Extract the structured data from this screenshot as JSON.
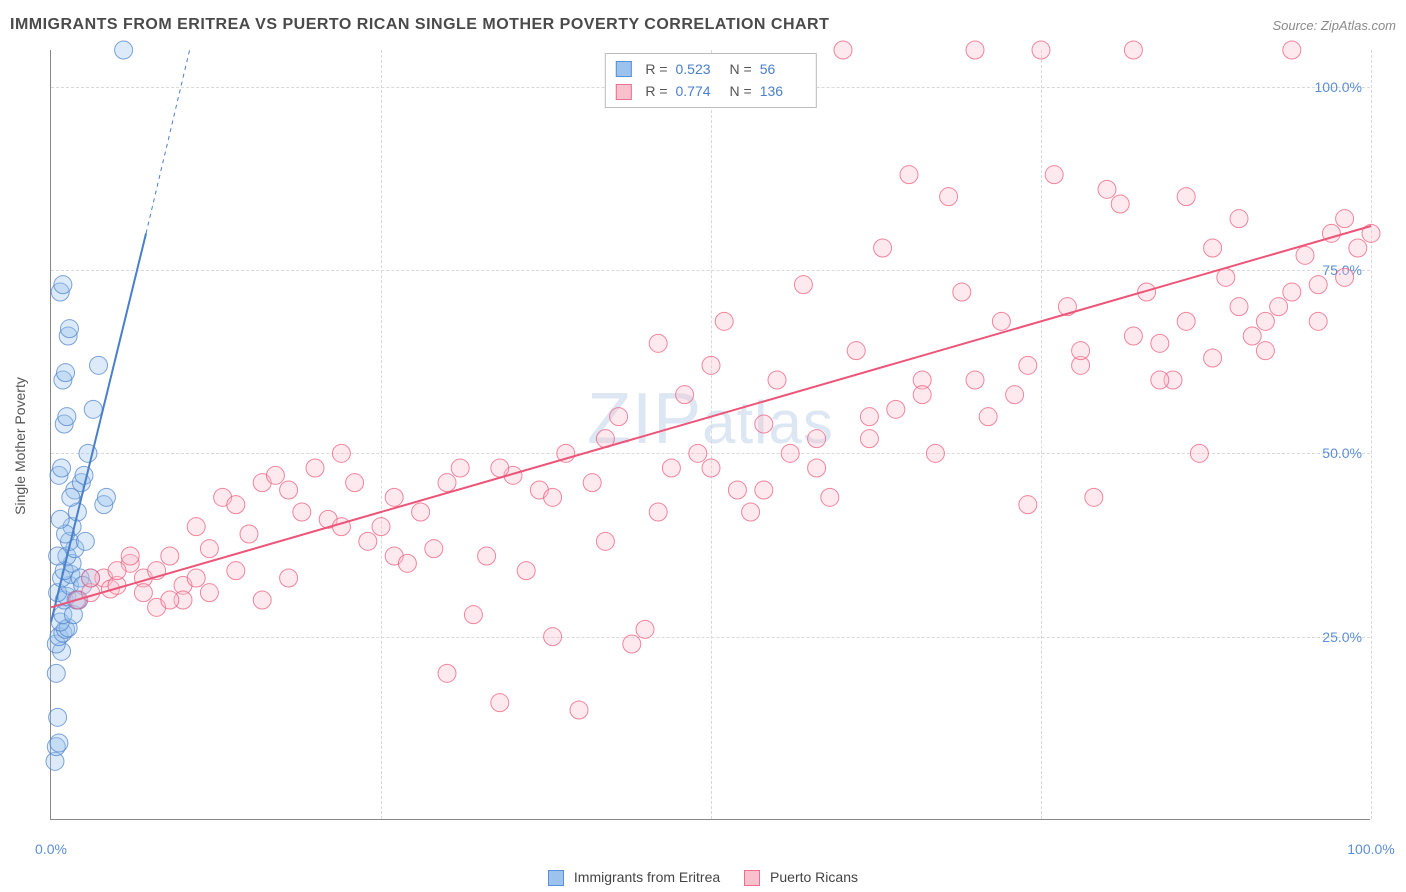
{
  "title": "IMMIGRANTS FROM ERITREA VS PUERTO RICAN SINGLE MOTHER POVERTY CORRELATION CHART",
  "source_label": "Source: ZipAtlas.com",
  "ylabel": "Single Mother Poverty",
  "watermark": "ZIPatlas",
  "legend": {
    "series1": {
      "label": "Immigrants from Eritrea",
      "fill": "#9cc3ee",
      "stroke": "#5b8fd6"
    },
    "series2": {
      "label": "Puerto Ricans",
      "fill": "#f9c0ce",
      "stroke": "#ec6f91"
    }
  },
  "inset": {
    "rows": [
      {
        "swatch_fill": "#9cc3ee",
        "swatch_stroke": "#5b8fd6",
        "r": "0.523",
        "n": "56"
      },
      {
        "swatch_fill": "#f9c0ce",
        "swatch_stroke": "#ec6f91",
        "r": "0.774",
        "n": "136"
      }
    ],
    "r_prefix": "R =",
    "n_prefix": "N ="
  },
  "chart": {
    "type": "scatter",
    "xlim": [
      0,
      100
    ],
    "ylim": [
      0,
      105
    ],
    "xtick_positions": [
      0,
      25,
      50,
      75,
      100
    ],
    "xtick_labels_shown": {
      "0": "0.0%",
      "100": "100.0%"
    },
    "ytick_positions": [
      25,
      50,
      75,
      100
    ],
    "ytick_labels": {
      "25": "25.0%",
      "50": "50.0%",
      "75": "75.0%",
      "100": "100.0%"
    },
    "background_color": "#ffffff",
    "grid_color": "#d8d8d8",
    "marker_radius": 9,
    "marker_fill_opacity": 0.35,
    "line_width": 2,
    "series": [
      {
        "name": "eritrea",
        "color": "#4a7fc9",
        "fill": "#9cc3ee",
        "trend": {
          "x1": 0,
          "y1": 27,
          "x2": 7.2,
          "y2": 80,
          "dashed_ext": {
            "x2": 10.5,
            "y2": 105
          }
        },
        "points": [
          [
            0.3,
            8
          ],
          [
            0.4,
            10
          ],
          [
            0.6,
            10.5
          ],
          [
            0.5,
            14
          ],
          [
            0.8,
            23
          ],
          [
            0.4,
            24
          ],
          [
            0.6,
            25
          ],
          [
            0.9,
            25.5
          ],
          [
            1.1,
            26
          ],
          [
            1.3,
            26.2
          ],
          [
            0.7,
            27
          ],
          [
            0.9,
            28
          ],
          [
            1.0,
            30
          ],
          [
            1.2,
            30.5
          ],
          [
            0.5,
            31
          ],
          [
            1.4,
            32
          ],
          [
            0.8,
            33
          ],
          [
            1.5,
            33.5
          ],
          [
            1.0,
            34
          ],
          [
            1.6,
            35
          ],
          [
            1.2,
            36
          ],
          [
            1.8,
            37
          ],
          [
            1.4,
            38
          ],
          [
            1.6,
            40
          ],
          [
            2.0,
            42
          ],
          [
            1.8,
            45
          ],
          [
            2.3,
            46
          ],
          [
            2.5,
            47
          ],
          [
            0.6,
            47
          ],
          [
            0.8,
            48
          ],
          [
            2.8,
            50
          ],
          [
            1.0,
            54
          ],
          [
            1.2,
            55
          ],
          [
            3.2,
            56
          ],
          [
            0.9,
            60
          ],
          [
            1.1,
            61
          ],
          [
            3.6,
            62
          ],
          [
            1.3,
            66
          ],
          [
            1.4,
            67
          ],
          [
            0.7,
            72
          ],
          [
            0.9,
            73
          ],
          [
            4.0,
            43
          ],
          [
            4.2,
            44
          ],
          [
            3.0,
            33
          ],
          [
            2.2,
            33
          ],
          [
            1.9,
            30
          ],
          [
            2.4,
            32
          ],
          [
            2.6,
            38
          ],
          [
            1.7,
            28
          ],
          [
            2.1,
            30
          ],
          [
            5.5,
            105
          ],
          [
            0.5,
            36
          ],
          [
            1.1,
            39
          ],
          [
            0.7,
            41
          ],
          [
            1.5,
            44
          ],
          [
            0.4,
            20
          ]
        ]
      },
      {
        "name": "puerto_rican",
        "color": "#ec5578",
        "fill": "#f9c0ce",
        "trend": {
          "x1": 0,
          "y1": 29,
          "x2": 100,
          "y2": 81
        },
        "points": [
          [
            2,
            30
          ],
          [
            3,
            31
          ],
          [
            4,
            33
          ],
          [
            4.5,
            31.5
          ],
          [
            5,
            32
          ],
          [
            6,
            35
          ],
          [
            7,
            33
          ],
          [
            8,
            34
          ],
          [
            9,
            36
          ],
          [
            10,
            32
          ],
          [
            11,
            40
          ],
          [
            12,
            37
          ],
          [
            13,
            44
          ],
          [
            14,
            43
          ],
          [
            15,
            39
          ],
          [
            16,
            46
          ],
          [
            17,
            47
          ],
          [
            18,
            45
          ],
          [
            19,
            42
          ],
          [
            20,
            48
          ],
          [
            21,
            41
          ],
          [
            22,
            50
          ],
          [
            23,
            46
          ],
          [
            24,
            38
          ],
          [
            25,
            40
          ],
          [
            26,
            36
          ],
          [
            27,
            35
          ],
          [
            28,
            42
          ],
          [
            29,
            37
          ],
          [
            30,
            20
          ],
          [
            31,
            48
          ],
          [
            32,
            28
          ],
          [
            33,
            36
          ],
          [
            34,
            16
          ],
          [
            35,
            47
          ],
          [
            36,
            34
          ],
          [
            37,
            45
          ],
          [
            38,
            25
          ],
          [
            39,
            50
          ],
          [
            40,
            15
          ],
          [
            41,
            46
          ],
          [
            42,
            52
          ],
          [
            43,
            55
          ],
          [
            44,
            24
          ],
          [
            45,
            26
          ],
          [
            46,
            65
          ],
          [
            47,
            48
          ],
          [
            48,
            58
          ],
          [
            49,
            50
          ],
          [
            50,
            62
          ],
          [
            51,
            68
          ],
          [
            52,
            45
          ],
          [
            53,
            42
          ],
          [
            54,
            54
          ],
          [
            55,
            60
          ],
          [
            56,
            50
          ],
          [
            57,
            73
          ],
          [
            58,
            48
          ],
          [
            59,
            44
          ],
          [
            60,
            105
          ],
          [
            61,
            64
          ],
          [
            62,
            52
          ],
          [
            63,
            78
          ],
          [
            64,
            56
          ],
          [
            65,
            88
          ],
          [
            66,
            60
          ],
          [
            67,
            50
          ],
          [
            68,
            85
          ],
          [
            69,
            72
          ],
          [
            70,
            105
          ],
          [
            71,
            55
          ],
          [
            72,
            68
          ],
          [
            73,
            58
          ],
          [
            74,
            43
          ],
          [
            75,
            105
          ],
          [
            76,
            88
          ],
          [
            77,
            70
          ],
          [
            78,
            62
          ],
          [
            79,
            44
          ],
          [
            80,
            86
          ],
          [
            81,
            84
          ],
          [
            82,
            105
          ],
          [
            83,
            72
          ],
          [
            84,
            65
          ],
          [
            85,
            60
          ],
          [
            86,
            85
          ],
          [
            87,
            50
          ],
          [
            88,
            78
          ],
          [
            89,
            74
          ],
          [
            90,
            82
          ],
          [
            91,
            66
          ],
          [
            92,
            68
          ],
          [
            93,
            70
          ],
          [
            94,
            105
          ],
          [
            95,
            77
          ],
          [
            96,
            73
          ],
          [
            97,
            80
          ],
          [
            98,
            82
          ],
          [
            99,
            78
          ],
          [
            100,
            80
          ],
          [
            8,
            29
          ],
          [
            12,
            31
          ],
          [
            16,
            30
          ],
          [
            6,
            36
          ],
          [
            10,
            30
          ],
          [
            14,
            34
          ],
          [
            18,
            33
          ],
          [
            22,
            40
          ],
          [
            26,
            44
          ],
          [
            30,
            46
          ],
          [
            34,
            48
          ],
          [
            38,
            44
          ],
          [
            42,
            38
          ],
          [
            46,
            42
          ],
          [
            50,
            48
          ],
          [
            54,
            45
          ],
          [
            58,
            52
          ],
          [
            62,
            55
          ],
          [
            66,
            58
          ],
          [
            70,
            60
          ],
          [
            74,
            62
          ],
          [
            78,
            64
          ],
          [
            82,
            66
          ],
          [
            86,
            68
          ],
          [
            90,
            70
          ],
          [
            94,
            72
          ],
          [
            98,
            74
          ],
          [
            96,
            68
          ],
          [
            92,
            64
          ],
          [
            88,
            63
          ],
          [
            84,
            60
          ],
          [
            3,
            33
          ],
          [
            5,
            34
          ],
          [
            7,
            31
          ],
          [
            9,
            30
          ],
          [
            11,
            33
          ]
        ]
      }
    ]
  }
}
